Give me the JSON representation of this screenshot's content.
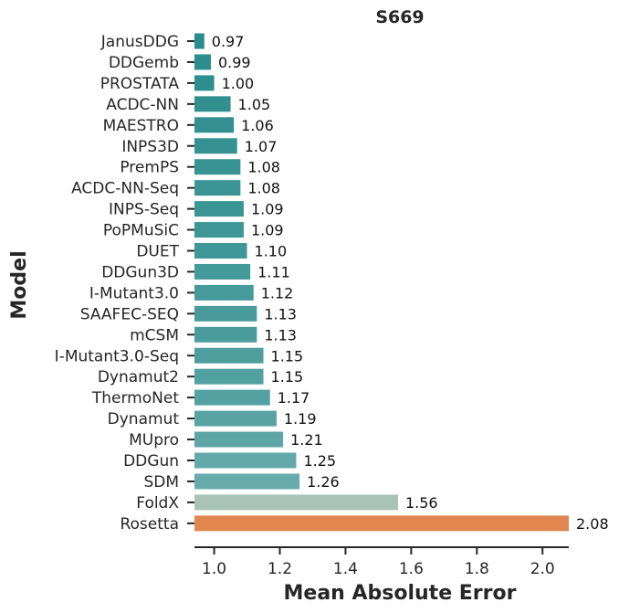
{
  "chart_data": {
    "type": "bar",
    "orientation": "horizontal",
    "title": "S669",
    "xlabel": "Mean Absolute Error",
    "ylabel": "Model",
    "categories": [
      "JanusDDG",
      "DDGemb",
      "PROSTATA",
      "ACDC-NN",
      "MAESTRO",
      "INPS3D",
      "PremPS",
      "ACDC-NN-Seq",
      "INPS-Seq",
      "PoPMuSiC",
      "DUET",
      "DDGun3D",
      "I-Mutant3.0",
      "SAAFEC-SEQ",
      "mCSM",
      "I-Mutant3.0-Seq",
      "Dynamut2",
      "ThermoNet",
      "Dynamut",
      "MUpro",
      "DDGun",
      "SDM",
      "FoldX",
      "Rosetta"
    ],
    "values": [
      0.97,
      0.99,
      1.0,
      1.05,
      1.06,
      1.07,
      1.08,
      1.08,
      1.09,
      1.09,
      1.1,
      1.11,
      1.12,
      1.13,
      1.13,
      1.15,
      1.15,
      1.17,
      1.19,
      1.21,
      1.25,
      1.26,
      1.56,
      2.08
    ],
    "value_labels": [
      "0.97",
      "0.99",
      "1.00",
      "1.05",
      "1.06",
      "1.07",
      "1.08",
      "1.08",
      "1.09",
      "1.09",
      "1.10",
      "1.11",
      "1.12",
      "1.13",
      "1.13",
      "1.15",
      "1.15",
      "1.17",
      "1.19",
      "1.21",
      "1.25",
      "1.26",
      "1.56",
      "2.08"
    ],
    "colors": [
      "#2a8c8c",
      "#2c8d8d",
      "#2d8e8e",
      "#328f8f",
      "#349090",
      "#369292",
      "#389393",
      "#3a9494",
      "#3c9595",
      "#3e9696",
      "#419797",
      "#449999",
      "#469a9a",
      "#499b9b",
      "#4b9c9c",
      "#4f9e9e",
      "#52a0a0",
      "#55a1a1",
      "#59a3a3",
      "#5ea6a6",
      "#63a9a9",
      "#68abab",
      "#a9c3b8",
      "#e0864e"
    ],
    "xticks": [
      "1.0",
      "1.2",
      "1.4",
      "1.6",
      "1.8",
      "2.0"
    ],
    "xlim": [
      0.94,
      2.08
    ],
    "grid": false,
    "legend": "none"
  }
}
